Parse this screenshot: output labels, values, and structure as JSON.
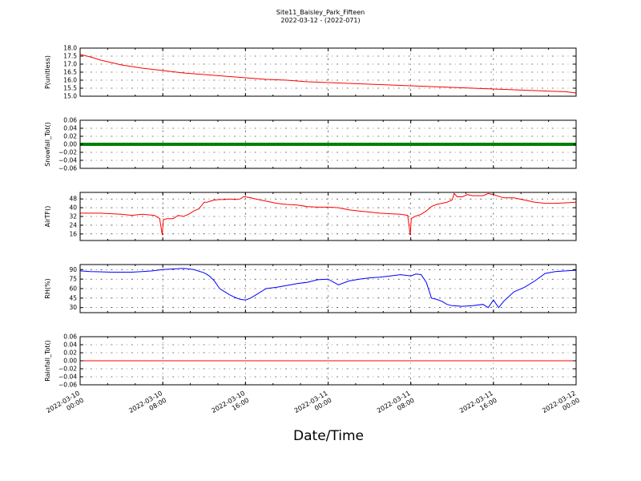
{
  "title": "Site11_Baisley_Park_Fifteen",
  "subtitle": "2022-03-12 - (2022-071)",
  "xlabel": "Date/Time",
  "chart_data": {
    "type": "line",
    "x_tick_labels": [
      [
        "2022-03-10",
        "00:00"
      ],
      [
        "2022-03-10",
        "08:00"
      ],
      [
        "2022-03-10",
        "16:00"
      ],
      [
        "2022-03-11",
        "00:00"
      ],
      [
        "2022-03-11",
        "08:00"
      ],
      [
        "2022-03-11",
        "16:00"
      ],
      [
        "2022-03-12",
        "00:00"
      ]
    ],
    "xlim_hours": [
      0,
      48
    ],
    "grid": true,
    "panels": [
      {
        "ylabel": "P(unitless)",
        "color": "#ff0000",
        "ylim": [
          15.0,
          18.0
        ],
        "yticks": [
          15.0,
          15.5,
          16.0,
          16.5,
          17.0,
          17.5,
          18.0
        ],
        "ytick_labels": [
          "15.0",
          "15.5",
          "16.0",
          "16.5",
          "17.0",
          "17.5",
          "18.0"
        ],
        "x": [
          0,
          1,
          2,
          3,
          4,
          5,
          6,
          8,
          10,
          12,
          14,
          16,
          18,
          20,
          22,
          24,
          26,
          28,
          30,
          32,
          34,
          36,
          38,
          40,
          42,
          44,
          46,
          47,
          48
        ],
        "y": [
          17.6,
          17.45,
          17.25,
          17.1,
          16.95,
          16.85,
          16.75,
          16.6,
          16.45,
          16.35,
          16.25,
          16.15,
          16.05,
          16.0,
          15.9,
          15.85,
          15.8,
          15.75,
          15.7,
          15.65,
          15.6,
          15.55,
          15.5,
          15.45,
          15.4,
          15.35,
          15.3,
          15.28,
          15.2
        ]
      },
      {
        "ylabel": "Snowfall_Tot()",
        "color": "#008000",
        "ylim": [
          -0.06,
          0.06
        ],
        "yticks": [
          -0.06,
          -0.04,
          -0.02,
          0.0,
          0.02,
          0.04,
          0.06
        ],
        "ytick_labels": [
          "−0.06",
          "−0.04",
          "−0.02",
          "0.00",
          "0.02",
          "0.04",
          "0.06"
        ],
        "thick": true,
        "x": [
          0,
          48
        ],
        "y": [
          0,
          0
        ]
      },
      {
        "ylabel": "AirTF()",
        "color": "#ff0000",
        "ylim": [
          10,
          54
        ],
        "yticks": [
          16,
          24,
          32,
          40,
          48
        ],
        "ytick_labels": [
          "16",
          "24",
          "32",
          "40",
          "48"
        ],
        "x": [
          0,
          2,
          4,
          5,
          6,
          7.2,
          7.7,
          7.95,
          8.05,
          8.4,
          9,
          9.5,
          10,
          10.5,
          11,
          11.5,
          12,
          12.3,
          12.6,
          13,
          13.5,
          14,
          14.5,
          15,
          15.5,
          15.8,
          16,
          16.5,
          17,
          18,
          19,
          20,
          21,
          22,
          23,
          24,
          25,
          26,
          27,
          28,
          29,
          30,
          31,
          31.7,
          31.95,
          32.05,
          32.4,
          33,
          33.5,
          34,
          34.5,
          35,
          35.5,
          36,
          36.2,
          36.5,
          37,
          37.5,
          38,
          38.5,
          39,
          39.5,
          40,
          41,
          42,
          43,
          44,
          45,
          46,
          47,
          48
        ],
        "y": [
          35,
          35,
          34,
          33,
          34,
          33,
          30,
          15,
          29,
          30,
          30,
          33,
          32,
          34,
          37,
          39,
          45,
          45,
          46,
          47,
          47.5,
          47.5,
          48,
          47.5,
          48,
          50,
          50,
          49,
          48,
          46,
          44,
          43,
          42.5,
          41,
          40.5,
          40.5,
          40,
          38,
          37,
          36,
          35,
          34.5,
          34,
          33,
          15,
          30,
          32,
          34,
          37,
          41,
          43,
          44,
          45,
          47,
          53,
          50,
          50,
          52,
          51,
          51,
          51,
          53,
          52,
          49,
          49,
          47,
          45,
          44,
          44,
          44.5,
          45
        ]
      },
      {
        "ylabel": "RH(%)",
        "color": "#0000ff",
        "ylim": [
          22,
          98
        ],
        "yticks": [
          30,
          45,
          60,
          75,
          90
        ],
        "ytick_labels": [
          "30",
          "45",
          "60",
          "75",
          "90"
        ],
        "x": [
          0,
          1,
          3,
          5,
          6,
          7,
          8,
          9,
          10,
          11,
          12,
          12.5,
          13,
          13.5,
          14,
          14.5,
          15,
          15.5,
          16,
          16.5,
          17,
          18,
          19,
          20,
          21,
          22,
          23,
          24,
          25,
          26,
          27,
          28,
          29,
          30,
          31,
          32,
          32.5,
          33,
          33.5,
          34,
          34.5,
          35,
          35.5,
          36,
          37,
          38,
          39,
          39.5,
          40,
          40.5,
          41,
          42,
          43,
          44,
          45,
          46,
          47,
          48
        ],
        "y": [
          88,
          87,
          86,
          86,
          87,
          88,
          90,
          91,
          92,
          90,
          85,
          80,
          72,
          60,
          55,
          50,
          46,
          43,
          42,
          45,
          50,
          60,
          62,
          65,
          68,
          70,
          74,
          75,
          66,
          72,
          75,
          77,
          78,
          80,
          82,
          80,
          83,
          82,
          70,
          45,
          43,
          40,
          35,
          33,
          32,
          33,
          35,
          30,
          42,
          30,
          40,
          55,
          62,
          72,
          84,
          87,
          88,
          89
        ]
      },
      {
        "ylabel": "Rainfall_Tot()",
        "color": "#ff0000",
        "ylim": [
          -0.06,
          0.06
        ],
        "yticks": [
          -0.06,
          -0.04,
          -0.02,
          0.0,
          0.02,
          0.04,
          0.06
        ],
        "ytick_labels": [
          "−0.06",
          "−0.04",
          "−0.02",
          "0.00",
          "0.02",
          "0.04",
          "0.06"
        ],
        "x": [
          0,
          48
        ],
        "y": [
          0,
          0
        ]
      }
    ]
  }
}
